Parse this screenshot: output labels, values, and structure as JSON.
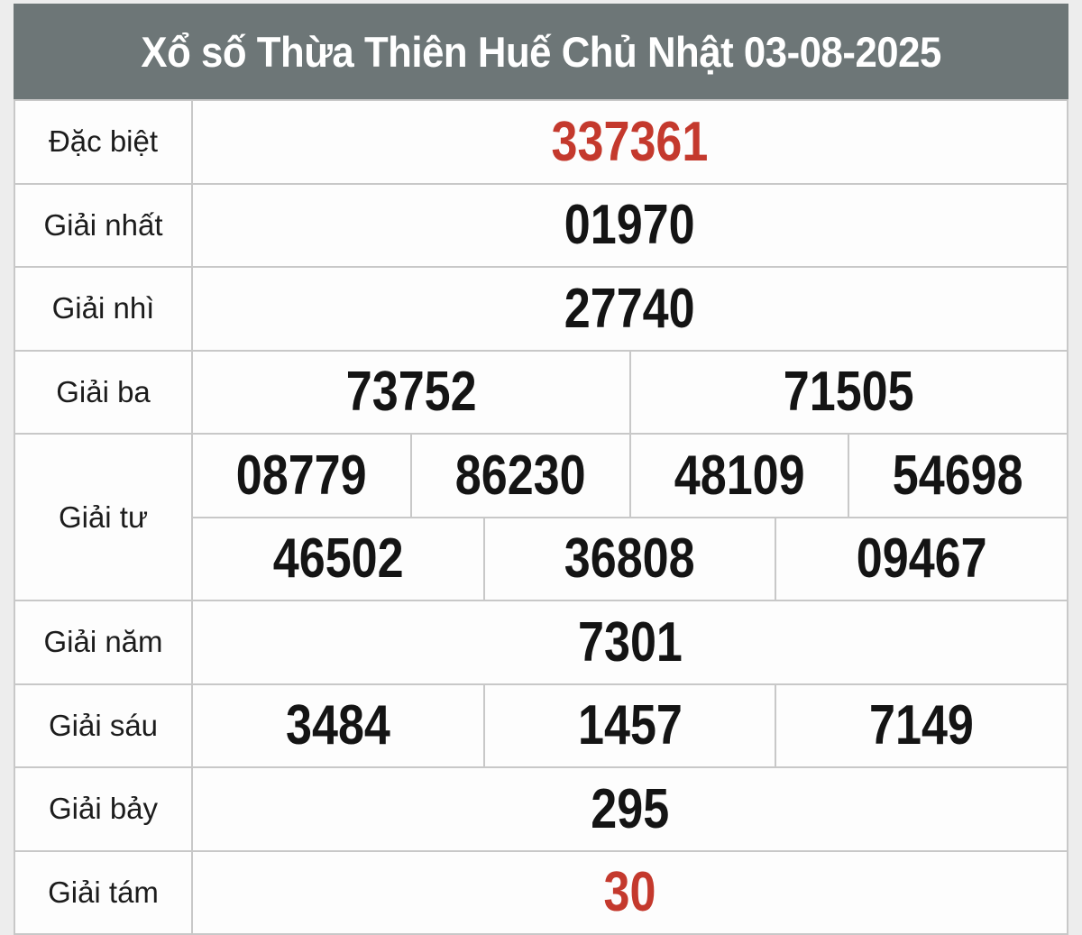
{
  "page": {
    "background": "#ededed"
  },
  "header": {
    "title": "Xổ số Thừa Thiên Huế Chủ Nhật 03-08-2025",
    "bg": "#6d7677",
    "text_color": "#ffffff"
  },
  "colors": {
    "border": "#c8c8c8",
    "cell_bg": "#fdfdfd",
    "number": "#141414",
    "label": "#1c1c1c",
    "highlight": "#c4392d"
  },
  "table": {
    "rows": [
      {
        "label": "Đặc biệt",
        "highlight": true,
        "groups": [
          [
            "337361"
          ]
        ]
      },
      {
        "label": "Giải nhất",
        "highlight": false,
        "groups": [
          [
            "01970"
          ]
        ]
      },
      {
        "label": "Giải nhì",
        "highlight": false,
        "groups": [
          [
            "27740"
          ]
        ]
      },
      {
        "label": "Giải ba",
        "highlight": false,
        "groups": [
          [
            "73752",
            "71505"
          ]
        ]
      },
      {
        "label": "Giải tư",
        "highlight": false,
        "groups": [
          [
            "08779",
            "86230",
            "48109",
            "54698"
          ],
          [
            "46502",
            "36808",
            "09467"
          ]
        ]
      },
      {
        "label": "Giải năm",
        "highlight": false,
        "groups": [
          [
            "7301"
          ]
        ]
      },
      {
        "label": "Giải sáu",
        "highlight": false,
        "groups": [
          [
            "3484",
            "1457",
            "7149"
          ]
        ]
      },
      {
        "label": "Giải bảy",
        "highlight": false,
        "groups": [
          [
            "295"
          ]
        ]
      },
      {
        "label": "Giải tám",
        "highlight": true,
        "groups": [
          [
            "30"
          ]
        ]
      }
    ]
  }
}
